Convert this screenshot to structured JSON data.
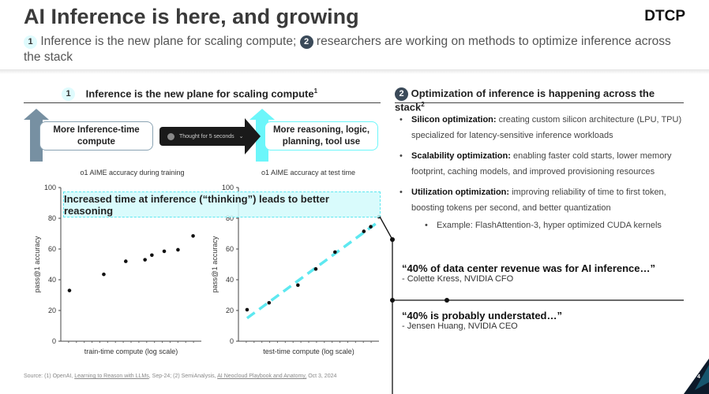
{
  "header": {
    "title": "AI Inference is here, and growing",
    "logo": "DTCP",
    "subtitle_n1": "1",
    "subtitle_part1": "Inference is the new plane for scaling compute;",
    "subtitle_n2": "2",
    "subtitle_part2": "researchers are working on methods to optimize inference across the stack"
  },
  "left": {
    "num": "1",
    "heading": "Inference is the new plane for scaling compute",
    "sup": "1",
    "box1": "More Inference-time compute",
    "thought": "Thought for 5 seconds",
    "box2": "More reasoning, logic, planning, tool use",
    "banner": "Increased time at inference (“thinking”) leads to better reasoning"
  },
  "right": {
    "num": "2",
    "heading": "Optimization of inference is happening across the stack",
    "sup": "2",
    "bullets": [
      {
        "bold": "Silicon optimization:",
        "text": " creating custom silicon architecture (LPU, TPU) specialized for latency-sensitive inference workloads"
      },
      {
        "bold": "Scalability optimization:",
        "text": " enabling faster cold starts, lower memory footprint, caching models, and improved provisioning resources"
      },
      {
        "bold": "Utilization optimization:",
        "text": " improving reliability of time to first token, boosting tokens per second, and better quantization"
      }
    ],
    "sub_bullet": "Example: FlashAttention-3, hyper optimized CUDA kernels",
    "quote1": "“40% of data center revenue was for AI inference…”",
    "attr1": "- Colette Kress, NVIDIA CFO",
    "quote2": "“40% is probably understated…”",
    "attr2": "- Jensen Huang, NVIDIA CEO"
  },
  "footer": {
    "prefix": "Source: (1) OpenAI, ",
    "link1": "Learning to Reason with LLMs",
    "mid": ", Sep-24; (2) SemiAnalysis, ",
    "link2": "AI Neocloud Playbook and Anatomy,",
    "suffix": " Oct 3, 2024",
    "page": "4"
  },
  "chart_data": [
    {
      "type": "scatter",
      "title": "o1 AIME accuracy during training",
      "xlabel": "train-time compute (log scale)",
      "ylabel": "pass@1 accuracy",
      "ylim": [
        0,
        100
      ],
      "xlim": [
        0,
        10
      ],
      "yticks": [
        "0",
        "20",
        "40",
        "60",
        "80",
        "100"
      ],
      "x": [
        0.4,
        2.9,
        4.5,
        5.9,
        6.4,
        7.3,
        8.3,
        9.4
      ],
      "y": [
        33,
        43.5,
        52,
        53,
        56,
        58.5,
        59.5,
        68.5
      ]
    },
    {
      "type": "scatter",
      "title": "o1 AIME accuracy at test time",
      "xlabel": "test-time compute (log scale)",
      "ylabel": "pass@1 accuracy",
      "ylim": [
        0,
        100
      ],
      "xlim": [
        0,
        10
      ],
      "yticks": [
        "0",
        "20",
        "40",
        "60",
        "80",
        "100"
      ],
      "x": [
        0.4,
        2.0,
        4.1,
        5.4,
        6.8,
        8.9,
        9.4,
        10
      ],
      "y": [
        20.5,
        25,
        36.5,
        47,
        58,
        71.5,
        74.5,
        81
      ],
      "trend": [
        [
          0.4,
          15
        ],
        [
          10,
          78
        ]
      ]
    }
  ]
}
